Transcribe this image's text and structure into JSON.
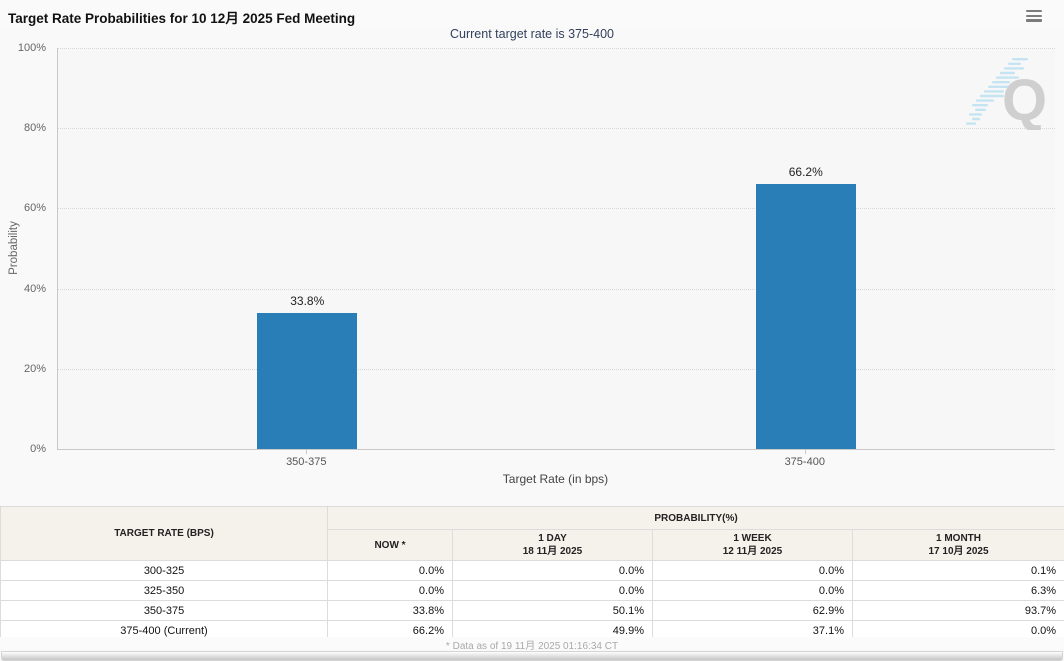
{
  "header": {
    "title": "Target Rate Probabilities for 10 12月 2025 Fed Meeting"
  },
  "subtitle": "Current target rate is 375-400",
  "chart_data": {
    "type": "bar",
    "title": "Target Rate Probabilities for 10 12月 2025 Fed Meeting",
    "categories": [
      "350-375",
      "375-400"
    ],
    "values": [
      33.8,
      66.2
    ],
    "value_labels": [
      "33.8%",
      "66.2%"
    ],
    "xlabel": "Target Rate (in bps)",
    "ylabel": "Probability",
    "ylim": [
      0,
      100
    ],
    "y_ticks": [
      "0%",
      "20%",
      "40%",
      "60%",
      "80%",
      "100%"
    ],
    "grid": "horizontal-dotted",
    "legend": "none",
    "bar_color": "#2A7EB8"
  },
  "watermark_letter": "Q",
  "table": {
    "header_rate": "TARGET RATE (BPS)",
    "header_probability": "PROBABILITY(%)",
    "columns": [
      {
        "label": "NOW *",
        "sub": ""
      },
      {
        "label": "1 DAY",
        "sub": "18 11月 2025"
      },
      {
        "label": "1 WEEK",
        "sub": "12 11月 2025"
      },
      {
        "label": "1 MONTH",
        "sub": "17 10月 2025"
      }
    ],
    "rows": [
      {
        "rate": "300-325",
        "values": [
          "0.0%",
          "0.0%",
          "0.0%",
          "0.1%"
        ]
      },
      {
        "rate": "325-350",
        "values": [
          "0.0%",
          "0.0%",
          "0.0%",
          "6.3%"
        ]
      },
      {
        "rate": "350-375",
        "values": [
          "33.8%",
          "50.1%",
          "62.9%",
          "93.7%"
        ]
      },
      {
        "rate": "375-400 (Current)",
        "values": [
          "66.2%",
          "49.9%",
          "37.1%",
          "0.0%"
        ]
      }
    ]
  },
  "footer": {
    "note": "* Data as of 19 11月 2025 01:16:34 CT"
  },
  "colors": {
    "bar": "#2A7EB8",
    "subtitle": "#33415C",
    "now_cell_bg": "#F8F7D9",
    "table_header_bg": "#F5F2EB"
  }
}
